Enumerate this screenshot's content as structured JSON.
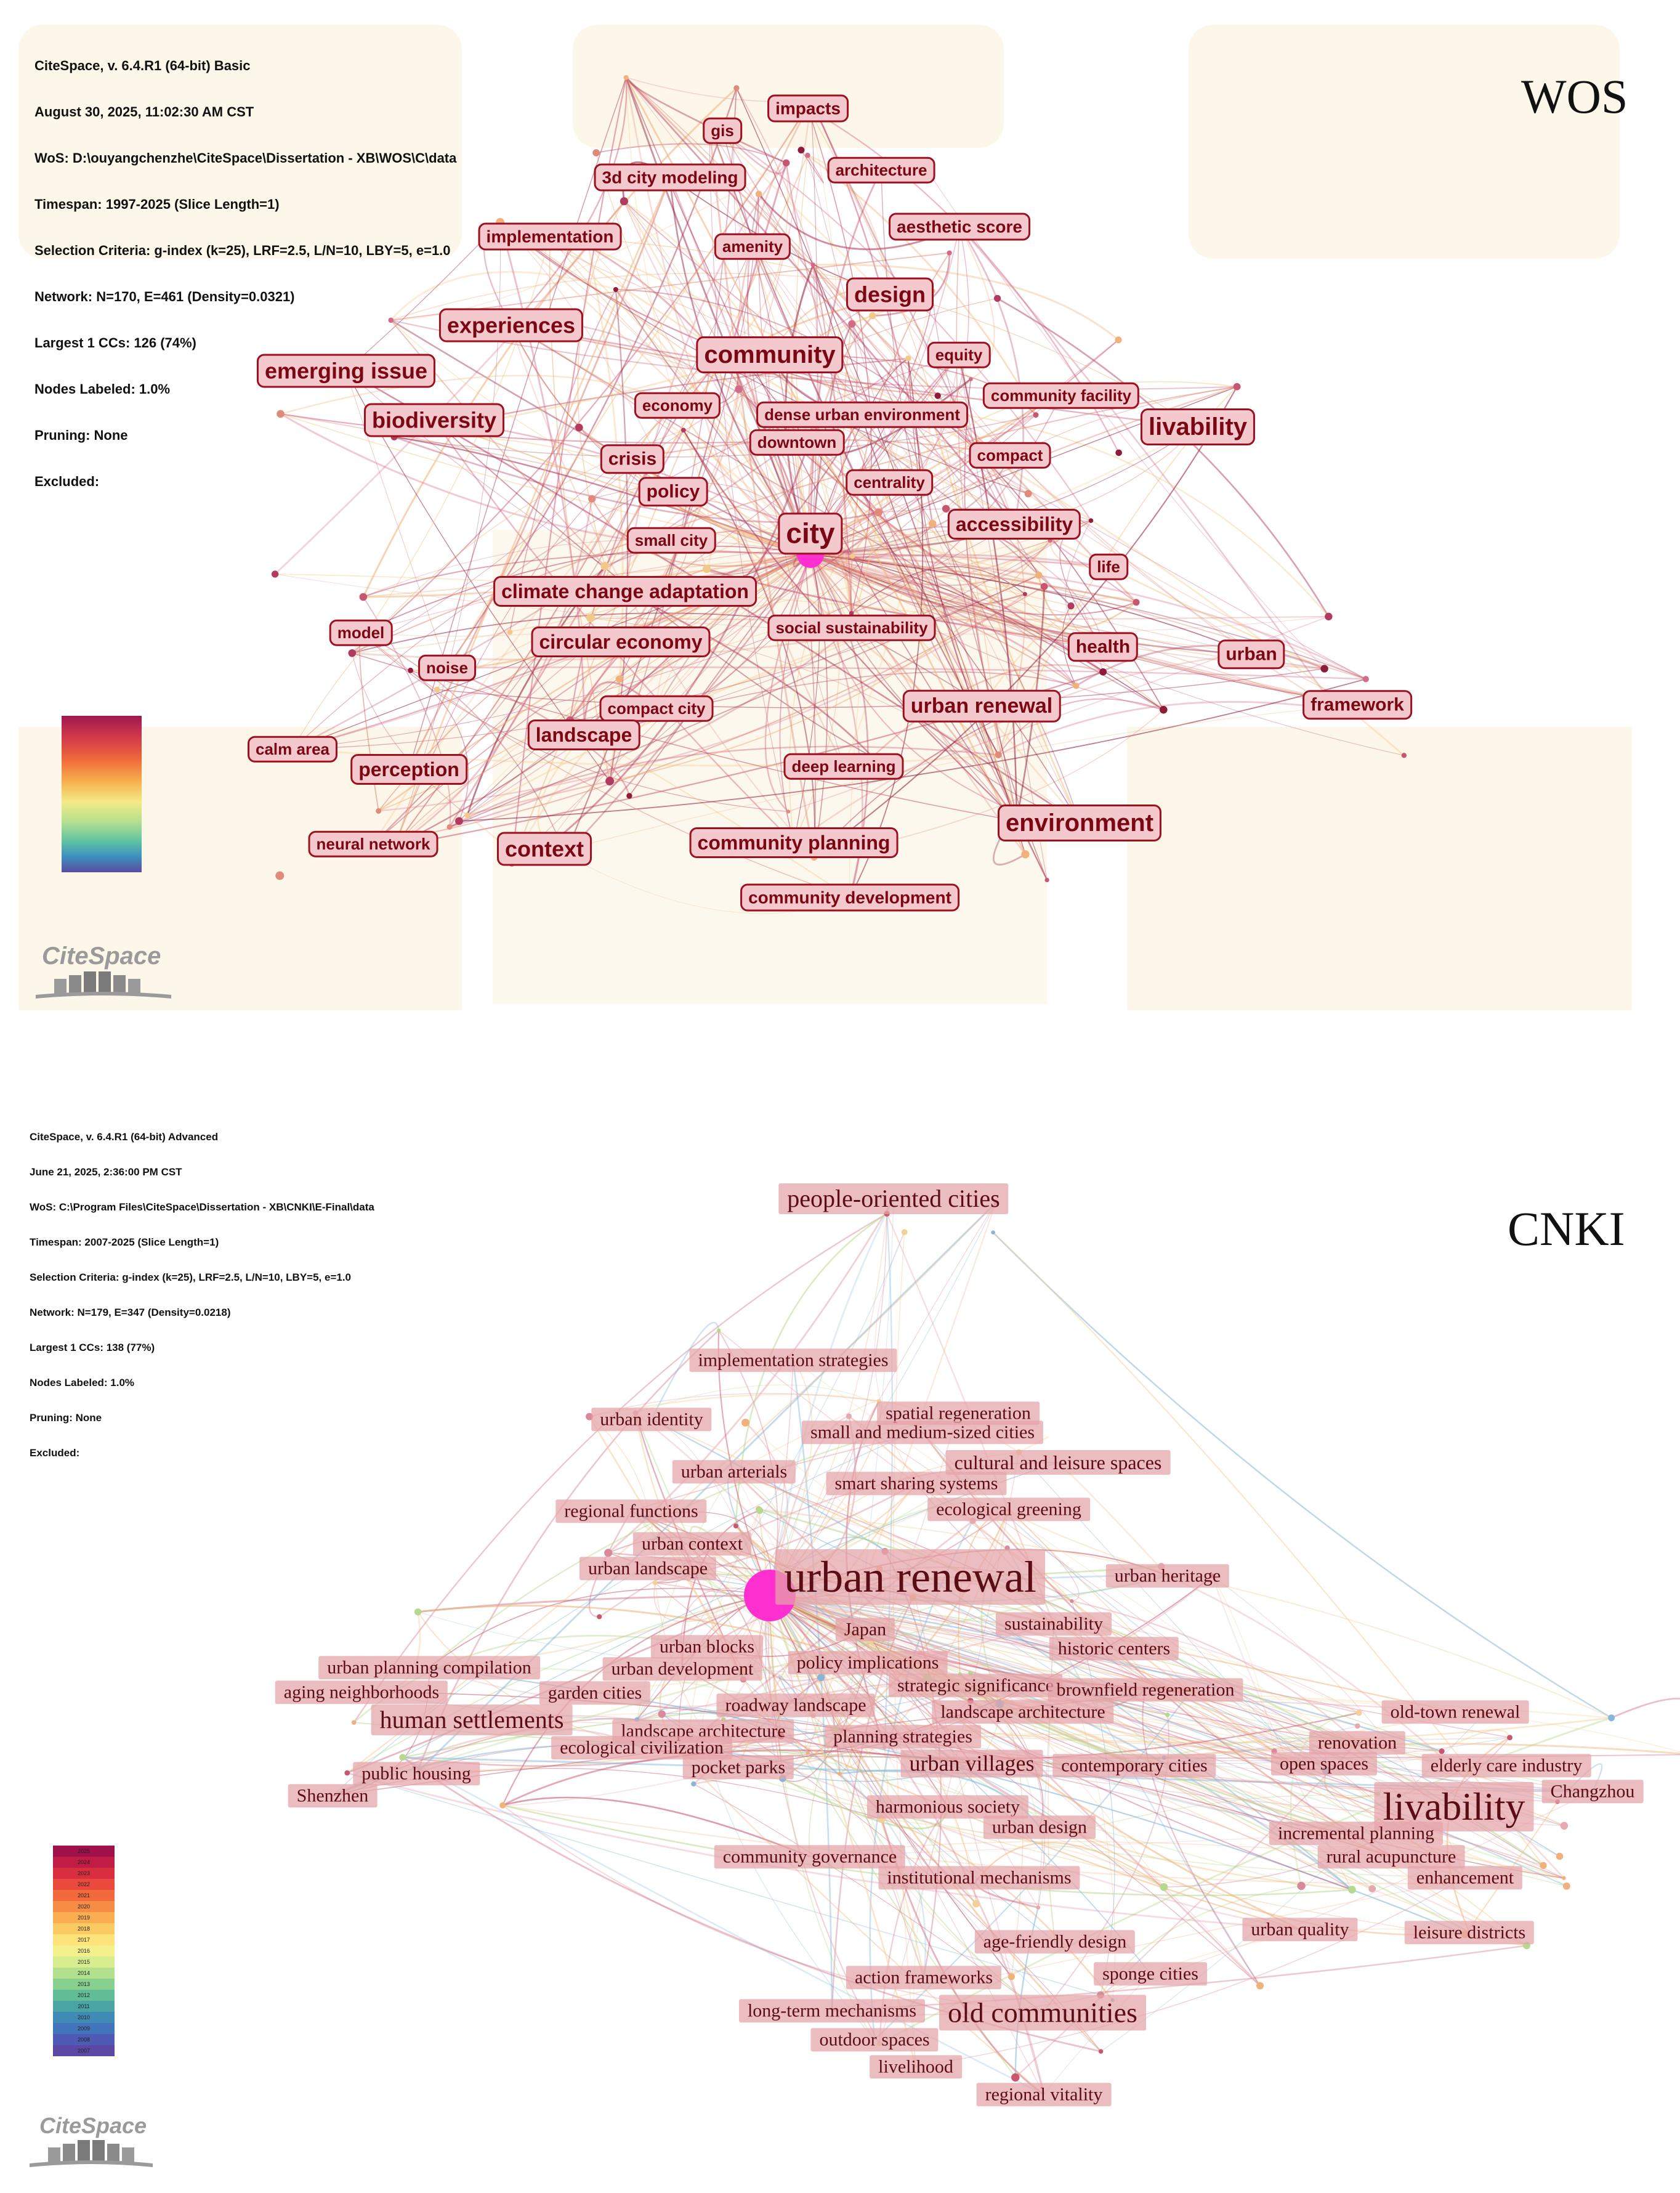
{
  "wos": {
    "panel_label": "WOS",
    "header_lines": [
      "CiteSpace, v. 6.4.R1 (64-bit) Basic",
      "August 30, 2025, 11:02:30 AM CST",
      "WoS: D:\\ouyangchenzhe\\CiteSpace\\Dissertation - XB\\WOS\\C\\data",
      "Timespan: 1997-2025 (Slice Length=1)",
      "Selection Criteria: g-index (k=25), LRF=2.5, L/N=10, LBY=5, e=1.0",
      "Network: N=170, E=461 (Density=0.0321)",
      "Largest 1 CCs: 126 (74%)",
      "Nodes Labeled: 1.0%",
      "Pruning: None",
      "Excluded:"
    ],
    "keywords": [
      "impacts",
      "gis",
      "architecture",
      "3d city modeling",
      "implementation",
      "amenity",
      "aesthetic score",
      "design",
      "experiences",
      "community",
      "equity",
      "emerging issue",
      "community facility",
      "economy",
      "dense urban environment",
      "livability",
      "biodiversity",
      "downtown",
      "compact",
      "crisis",
      "centrality",
      "policy",
      "city",
      "accessibility",
      "small city",
      "life",
      "climate change adaptation",
      "social sustainability",
      "model",
      "circular economy",
      "health",
      "urban",
      "noise",
      "compact city",
      "urban renewal",
      "framework",
      "landscape",
      "calm area",
      "perception",
      "deep learning",
      "environment",
      "neural network",
      "context",
      "community planning",
      "community development"
    ],
    "hub_keyword": "city"
  },
  "cnki": {
    "panel_label": "CNKI",
    "header_lines": [
      "CiteSpace, v. 6.4.R1 (64-bit) Advanced",
      "June 21, 2025, 2:36:00 PM CST",
      "WoS: C:\\Program Files\\CiteSpace\\Dissertation - XB\\CNKI\\E-Final\\data",
      "Timespan: 2007-2025 (Slice Length=1)",
      "Selection Criteria: g-index (k=25), LRF=2.5, L/N=10, LBY=5, e=1.0",
      "Network: N=179, E=347 (Density=0.0218)",
      "Largest 1 CCs: 138 (77%)",
      "Nodes Labeled: 1.0%",
      "Pruning: None",
      "Excluded:"
    ],
    "keywords": [
      "people-oriented cities",
      "implementation strategies",
      "spatial regeneration",
      "urban identity",
      "small and medium-sized cities",
      "cultural and leisure spaces",
      "urban arterials",
      "smart sharing systems",
      "ecological greening",
      "regional functions",
      "urban context",
      "urban renewal",
      "urban landscape",
      "urban heritage",
      "sustainability",
      "Japan",
      "urban blocks",
      "historic centers",
      "policy implications",
      "urban planning compilation",
      "urban development",
      "strategic significance",
      "brownfield regeneration",
      "aging neighborhoods",
      "garden cities",
      "roadway landscape",
      "landscape architecture",
      "human settlements",
      "old-town renewal",
      "landscape architecture",
      "planning strategies",
      "renovation",
      "ecological civilization",
      "elderly care industry",
      "urban villages",
      "contemporary cities",
      "open spaces",
      "pocket parks",
      "public housing",
      "Changzhou",
      "livability",
      "Shenzhen",
      "harmonious society",
      "urban design",
      "incremental planning",
      "rural acupuncture",
      "community governance",
      "institutional mechanisms",
      "enhancement",
      "urban quality",
      "leisure districts",
      "age-friendly design",
      "sponge cities",
      "action frameworks",
      "long-term mechanisms",
      "old communities",
      "outdoor spaces",
      "livelihood",
      "regional vitality"
    ],
    "hub_keyword": "urban renewal",
    "legend_years": [
      "2025",
      "2024",
      "2023",
      "2022",
      "2021",
      "2020",
      "2019",
      "2018",
      "2017",
      "2016",
      "2015",
      "2014",
      "2013",
      "2012",
      "2011",
      "2010",
      "2009",
      "2008",
      "2007"
    ]
  },
  "logo_text": "CiteSpace",
  "colors": {
    "wos_label_fill": "#f4c9cd",
    "wos_label_border": "#9c1020",
    "wos_label_text": "#7a0713",
    "cnki_label_fill": "#e5a3a8",
    "cnki_label_text": "#5a0d14",
    "hub_node": "#ff2fd0",
    "link_recent": "#c8566e",
    "link_old": "#f0b27a"
  }
}
